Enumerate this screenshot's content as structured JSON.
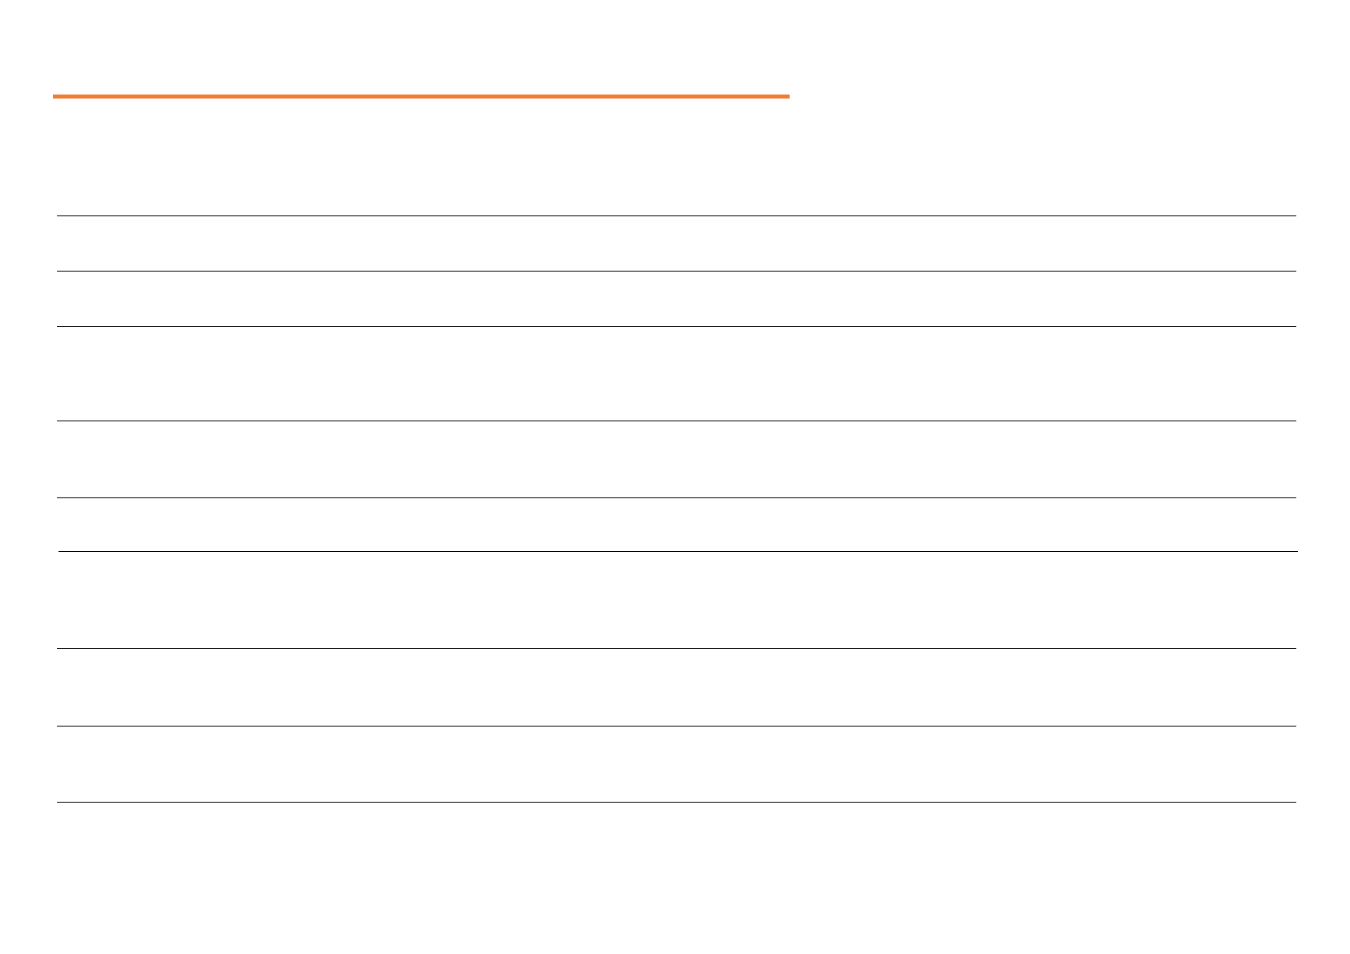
{
  "colors": {
    "accent": "#ef7d31",
    "rule": "#000000",
    "background": "#ffffff"
  },
  "rows": [
    {},
    {},
    {},
    {},
    {},
    {},
    {},
    {}
  ]
}
